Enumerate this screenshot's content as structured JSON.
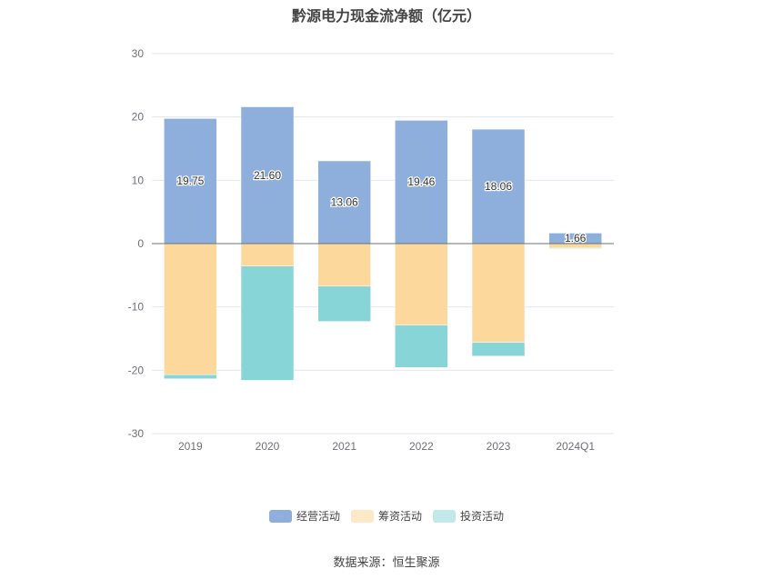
{
  "chart_data": {
    "type": "bar",
    "stacked": true,
    "title": "黔源电力现金流净额（亿元）",
    "categories": [
      "2019",
      "2020",
      "2021",
      "2022",
      "2023",
      "2024Q1"
    ],
    "ylim": [
      -30,
      30
    ],
    "yticks": [
      30,
      20,
      10,
      0,
      -10,
      -20,
      -30
    ],
    "grid": true,
    "legend_position": "bottom",
    "series": [
      {
        "name": "经营活动",
        "color": "#8eaedb",
        "legend_color": "#8eaedb",
        "values": [
          19.75,
          21.6,
          13.06,
          19.46,
          18.06,
          1.66
        ],
        "labels": [
          "19.75",
          "21.60",
          "13.06",
          "19.46",
          "18.06",
          "1.66"
        ]
      },
      {
        "name": "筹资活动",
        "color": "#fdd89c",
        "legend_color": "#fde8c8",
        "values": [
          -20.7,
          -3.55,
          -6.72,
          -12.86,
          -15.6,
          -0.72
        ]
      },
      {
        "name": "投资活动",
        "color": "#88d5d8",
        "legend_color": "#c2e9ea",
        "values": [
          -0.65,
          -18.05,
          -5.57,
          -6.71,
          -2.16,
          -0.1
        ]
      }
    ]
  },
  "source": "数据来源：恒生聚源"
}
